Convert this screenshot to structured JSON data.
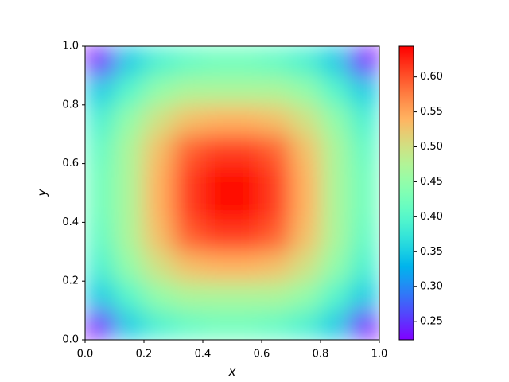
{
  "chart_data": {
    "type": "heatmap",
    "colormap": "rainbow",
    "xlabel": "x",
    "ylabel": "y",
    "xlim": [
      0,
      1
    ],
    "ylim": [
      0,
      1
    ],
    "clim": [
      0.224,
      0.644
    ],
    "xticks": [
      {
        "value": 0,
        "label": "0.0"
      },
      0.2,
      0.4,
      0.6,
      0.8,
      {
        "value": 1,
        "label": "1.0"
      }
    ],
    "yticks": [
      {
        "value": 0,
        "label": "0.0"
      },
      0.2,
      0.4,
      0.6,
      0.8,
      {
        "value": 1,
        "label": "1.0"
      }
    ],
    "cticks": [
      0.25,
      {
        "value": 0.3,
        "label": "0.30"
      },
      0.35,
      {
        "value": 0.4,
        "label": "0.40"
      },
      0.45,
      {
        "value": 0.5,
        "label": "0.50"
      },
      0.55,
      {
        "value": 0.6,
        "label": "0.60"
      }
    ],
    "z": [
      [
        0.23,
        0.35,
        0.39,
        0.41,
        0.42,
        0.42,
        0.41,
        0.39,
        0.35,
        0.23
      ],
      [
        0.35,
        0.4,
        0.45,
        0.47,
        0.47,
        0.47,
        0.47,
        0.45,
        0.4,
        0.35
      ],
      [
        0.39,
        0.45,
        0.5,
        0.53,
        0.54,
        0.54,
        0.53,
        0.5,
        0.45,
        0.39
      ],
      [
        0.41,
        0.47,
        0.53,
        0.59,
        0.61,
        0.61,
        0.59,
        0.53,
        0.47,
        0.41
      ],
      [
        0.42,
        0.47,
        0.54,
        0.61,
        0.64,
        0.64,
        0.61,
        0.54,
        0.47,
        0.42
      ],
      [
        0.42,
        0.47,
        0.54,
        0.61,
        0.64,
        0.64,
        0.61,
        0.54,
        0.47,
        0.42
      ],
      [
        0.41,
        0.47,
        0.53,
        0.59,
        0.61,
        0.61,
        0.59,
        0.53,
        0.47,
        0.41
      ],
      [
        0.39,
        0.45,
        0.5,
        0.53,
        0.54,
        0.54,
        0.53,
        0.5,
        0.45,
        0.39
      ],
      [
        0.35,
        0.4,
        0.45,
        0.47,
        0.47,
        0.47,
        0.47,
        0.45,
        0.4,
        0.35
      ],
      [
        0.23,
        0.35,
        0.39,
        0.41,
        0.42,
        0.42,
        0.41,
        0.39,
        0.35,
        0.23
      ]
    ]
  }
}
